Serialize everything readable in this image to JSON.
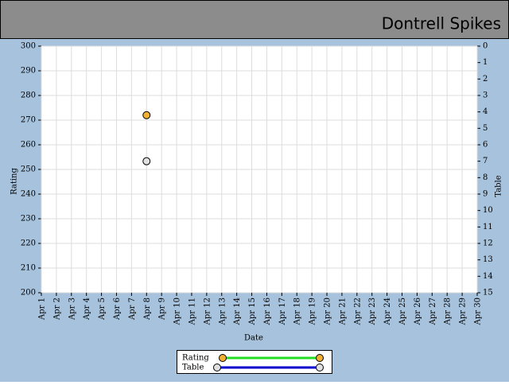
{
  "chart_data": {
    "type": "line",
    "title": "Dontrell Spikes",
    "x_label": "Date",
    "y_label": "Rating",
    "y2_label": "Table",
    "categories": [
      "Apr 1",
      "Apr 2",
      "Apr 3",
      "Apr 4",
      "Apr 5",
      "Apr 6",
      "Apr 7",
      "Apr 8",
      "Apr 9",
      "Apr 10",
      "Apr 11",
      "Apr 12",
      "Apr 13",
      "Apr 14",
      "Apr 15",
      "Apr 16",
      "Apr 17",
      "Apr 18",
      "Apr 19",
      "Apr 20",
      "Apr 21",
      "Apr 22",
      "Apr 23",
      "Apr 24",
      "Apr 25",
      "Apr 26",
      "Apr 27",
      "Apr 28",
      "Apr 29",
      "Apr 30"
    ],
    "series": [
      {
        "name": "Rating",
        "color": "#f0b030",
        "line_color": "#22dd22",
        "values": [
          null,
          null,
          null,
          null,
          null,
          null,
          null,
          272,
          null,
          null,
          null,
          null,
          null,
          null,
          null,
          null,
          null,
          null,
          null,
          null,
          null,
          null,
          null,
          null,
          null,
          null,
          null,
          null,
          null,
          null
        ]
      },
      {
        "name": "Table",
        "color": "#e0e0e0",
        "line_color": "#0000cc",
        "axis": "y2",
        "values": [
          null,
          null,
          null,
          null,
          null,
          null,
          null,
          7,
          null,
          null,
          null,
          null,
          null,
          null,
          null,
          null,
          null,
          null,
          null,
          null,
          null,
          null,
          null,
          null,
          null,
          null,
          null,
          null,
          null,
          null
        ]
      }
    ],
    "ylim": [
      200,
      300
    ],
    "yticks": [
      200,
      210,
      220,
      230,
      240,
      250,
      260,
      270,
      280,
      290,
      300
    ],
    "y2lim": [
      15,
      0
    ],
    "y2ticks": [
      0,
      1,
      2,
      3,
      4,
      5,
      6,
      7,
      8,
      9,
      10,
      11,
      12,
      13,
      14,
      15
    ],
    "grid": true
  }
}
